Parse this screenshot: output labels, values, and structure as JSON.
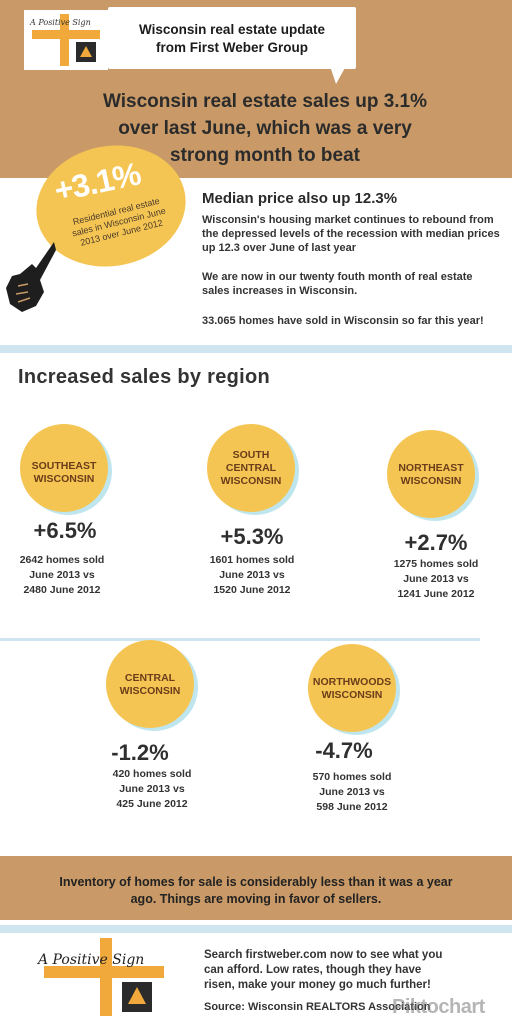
{
  "header": {
    "title_line1": "Wisconsin real estate update",
    "title_line2": "from First Weber Group",
    "logo_text": "A Positive Sign",
    "headline_lines": [
      "Wisconsin real estate sales up 3.1%",
      "over last June, which was a very",
      "strong month to beat"
    ]
  },
  "intro": {
    "badge_value": "+3.1%",
    "badge_caption": "Residential real estate sales in Wisconsin June 2013 over June 2012",
    "median_title": "Median price also up 12.3%",
    "paragraph1": "Wisconsin's housing market continues to rebound from the depressed levels of the recession with median prices up 12.3 over June of last year",
    "paragraph2": "We are now in our twenty fouth month of real estate sales increases in Wisconsin.",
    "paragraph3": "33.065 homes have sold in Wisconsin so far this year!"
  },
  "regions": {
    "title": "Increased sales by region",
    "items": [
      {
        "label": [
          "SOUTHEAST",
          "WISCONSIN"
        ],
        "change": "+6.5%",
        "sold": [
          "2642 homes sold",
          "June 2013  vs",
          "2480 June 2012"
        ]
      },
      {
        "label": [
          "SOUTH",
          "CENTRAL",
          "WISCONSIN"
        ],
        "change": "+5.3%",
        "sold": [
          "1601 homes sold",
          "June 2013  vs",
          "1520 June 2012"
        ]
      },
      {
        "label": [
          "NORTHEAST",
          "WISCONSIN"
        ],
        "change": "+2.7%",
        "sold": [
          "1275 homes sold",
          "June 2013  vs",
          "1241 June 2012"
        ]
      },
      {
        "label": [
          "CENTRAL",
          "WISCONSIN"
        ],
        "change": "-1.2%",
        "sold": [
          "420 homes sold",
          "June 2013 vs",
          "425 June 2012"
        ]
      },
      {
        "label": [
          "NORTHWOODS",
          "WISCONSIN"
        ],
        "change": "-4.7%",
        "sold": [
          "570 homes sold",
          "June 2013  vs",
          "598 June 2012"
        ]
      }
    ]
  },
  "inventory": {
    "line1": "Inventory of homes for sale is considerably less than it was a year",
    "line2": "ago. Things are moving in favor of sellers."
  },
  "footer": {
    "logo_text": "A Positive Sign",
    "cta_lines": [
      "Search firstweber.com now to see what you",
      "can afford. Low rates, though they have",
      "risen, make your money go much further!"
    ],
    "source": "Source: Wisconsin REALTORS Association",
    "watermark": "Piktochart"
  },
  "colors": {
    "tan": "#c99a67",
    "yellow": "#f5c553",
    "light_blue": "#cfe6f0",
    "orange_cross": "#f0a93a"
  }
}
